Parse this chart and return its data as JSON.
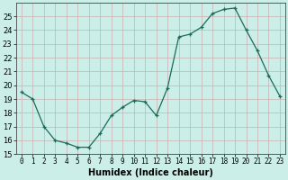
{
  "x": [
    0,
    1,
    2,
    3,
    4,
    5,
    6,
    7,
    8,
    9,
    10,
    11,
    12,
    13,
    14,
    15,
    16,
    17,
    18,
    19,
    20,
    21,
    22,
    23
  ],
  "y": [
    19.5,
    19.0,
    17.0,
    16.0,
    15.8,
    15.5,
    15.5,
    16.5,
    17.8,
    18.4,
    18.9,
    18.8,
    17.8,
    19.8,
    23.5,
    23.7,
    24.2,
    25.2,
    25.5,
    25.6,
    24.0,
    22.5,
    20.7,
    19.2
  ],
  "xlabel": "Humidex (Indice chaleur)",
  "ylim": [
    15,
    26
  ],
  "yticks": [
    15,
    16,
    17,
    18,
    19,
    20,
    21,
    22,
    23,
    24,
    25
  ],
  "line_color": "#1a6b5a",
  "marker_size": 2.5,
  "bg_color": "#cceee8",
  "grid_color_v": "#c9b0b0",
  "grid_color_h": "#c9b0b0",
  "fig_bg": "#cceee8",
  "xlabel_fontsize": 7,
  "tick_fontsize": 5.5,
  "ytick_fontsize": 6
}
